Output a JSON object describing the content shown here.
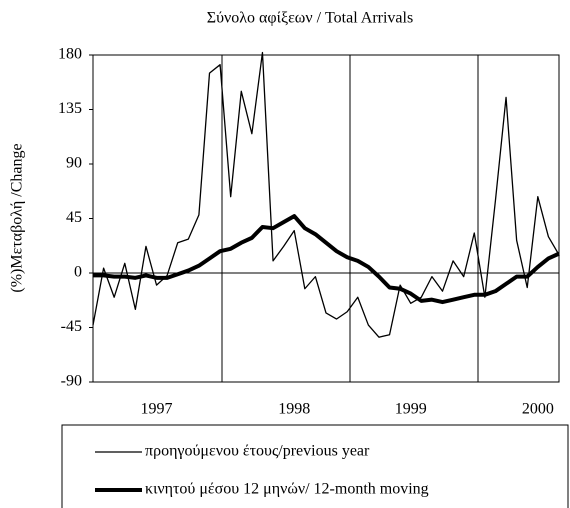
{
  "chart_data": {
    "type": "line",
    "title": "Σύνολο αφίξεων / Total Arrivals",
    "y_label": "(%)Μεταβολή /Change",
    "categories": [
      null,
      null,
      null,
      null,
      null,
      null,
      "1997",
      null,
      null,
      null,
      null,
      null,
      null,
      null,
      null,
      null,
      null,
      null,
      null,
      "1998",
      null,
      null,
      null,
      null,
      null,
      null,
      null,
      null,
      null,
      null,
      "1999",
      null,
      null,
      null,
      null,
      null,
      null,
      null,
      null,
      null,
      null,
      null,
      "2000",
      null,
      null
    ],
    "series": [
      {
        "name": "προηγούμενου έτους/previous year",
        "color": "#000000",
        "values": [
          -43,
          4,
          -20,
          8,
          -30,
          22,
          -10,
          -2,
          25,
          28,
          48,
          165,
          172,
          63,
          150,
          115,
          182,
          10,
          22,
          35,
          -13,
          -3,
          -33,
          -38,
          -32,
          -20,
          -43,
          -53,
          -51,
          -10,
          -25,
          -20,
          -3,
          -15,
          10,
          -3,
          33,
          -20,
          60,
          145,
          27,
          -12,
          63,
          30,
          15
        ]
      },
      {
        "name": "κινητού μέσου 12 μηνών/ 12-month moving",
        "color": "#000000",
        "values": [
          -2,
          -2,
          -3,
          -3,
          -4,
          -2,
          -4,
          -4,
          -1,
          2,
          6,
          12,
          18,
          20,
          25,
          29,
          38,
          37,
          42,
          47,
          37,
          32,
          25,
          18,
          13,
          10,
          5,
          -3,
          -12,
          -13,
          -17,
          -23,
          -22,
          -24,
          -22,
          -20,
          -18,
          -18,
          -15,
          -9,
          -3,
          -3,
          5,
          12,
          16
        ]
      }
    ],
    "ylim": [
      -90,
      180
    ],
    "yticks": [
      -90,
      -45,
      0,
      45,
      90,
      135,
      180
    ]
  }
}
